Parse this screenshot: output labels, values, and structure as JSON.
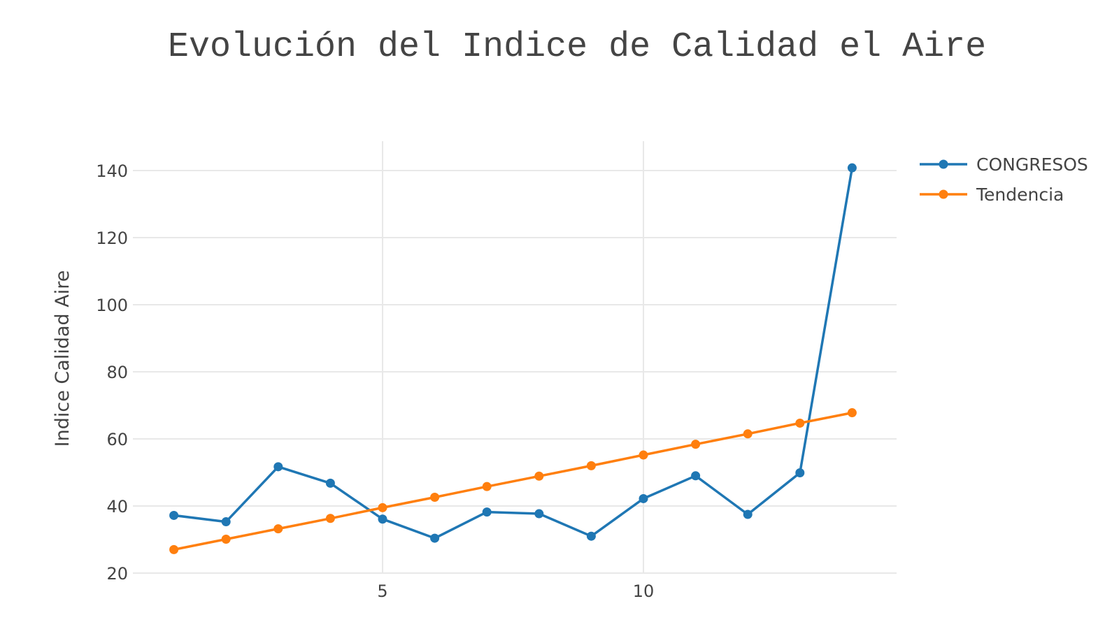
{
  "chart_data": {
    "type": "line",
    "title": "Evolución del Indice de Calidad el Aire",
    "xlabel": "",
    "ylabel": "Indice Calidad Aire",
    "xlim": [
      0.6,
      15.2
    ],
    "ylim": [
      18,
      150
    ],
    "x_ticks": [
      5,
      10
    ],
    "y_ticks": [
      20,
      40,
      60,
      80,
      100,
      120,
      140
    ],
    "grid": true,
    "legend_position": "top-right",
    "x": [
      1,
      2,
      3,
      4,
      5,
      6,
      7,
      8,
      9,
      10,
      11,
      12,
      13,
      14
    ],
    "series": [
      {
        "name": "CONGRESOS",
        "color": "#1f77b4",
        "marker": "circle",
        "values": [
          37.2,
          35.3,
          51.7,
          46.8,
          36.1,
          30.4,
          38.2,
          37.7,
          31.0,
          42.2,
          49.0,
          37.5,
          49.9,
          140.8
        ]
      },
      {
        "name": "Tendencia",
        "color": "#ff7f0e",
        "marker": "circle",
        "values": [
          27.0,
          30.1,
          33.2,
          36.3,
          39.5,
          42.6,
          45.8,
          48.9,
          52.0,
          55.2,
          58.4,
          61.5,
          64.7,
          67.8
        ]
      }
    ]
  }
}
